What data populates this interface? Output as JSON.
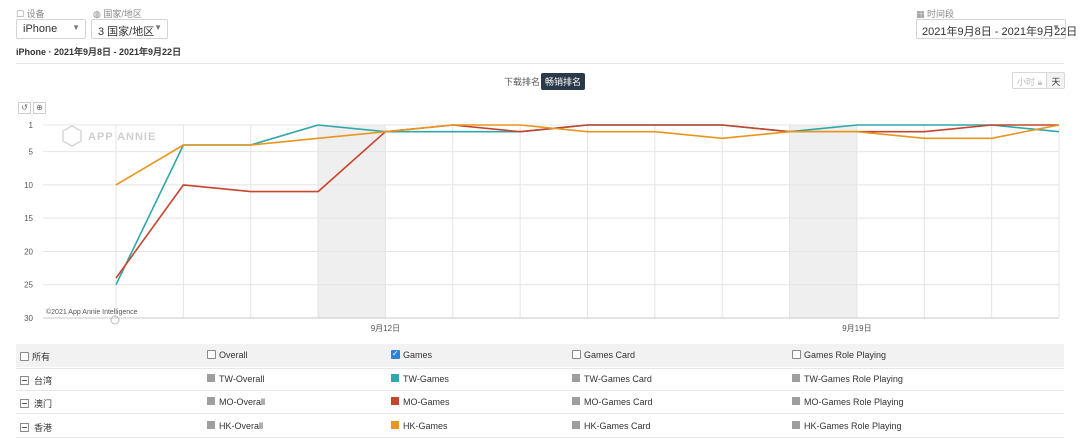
{
  "filters": {
    "device_label": "设备",
    "device_value": "iPhone",
    "country_label": "国家/地区",
    "country_value": "3 国家/地区",
    "time_label": "时间段",
    "time_value": "2021年9月8日 - 2021年9月22日"
  },
  "subtitle": "iPhone · 2021年9月8日 - 2021年9月22日",
  "rank_tabs": {
    "downloads": "下载排名",
    "grossing": "畅销排名"
  },
  "granularity": {
    "hour": "小时",
    "day": "天"
  },
  "watermark": "APP ANNIE",
  "copyright": "©2021 App Annie Intelligence",
  "colors": {
    "teal": "#2ea8a8",
    "red": "#c8442c",
    "orange": "#e8961e",
    "gray": "#9e9e9e",
    "accent": "#2b3a4a",
    "check": "#2b85d4"
  },
  "legend": {
    "headers": [
      "所有",
      "Overall",
      "Games",
      "Games Card",
      "Games Role Playing"
    ],
    "header_checked": [
      false,
      false,
      true,
      false,
      false
    ],
    "rows": [
      {
        "region": "台湾",
        "items": [
          "TW-Overall",
          "TW-Games",
          "TW-Games Card",
          "TW-Games Role Playing"
        ],
        "colors": [
          "#9e9e9e",
          "#2ea8a8",
          "#9e9e9e",
          "#9e9e9e"
        ]
      },
      {
        "region": "澳门",
        "items": [
          "MO-Overall",
          "MO-Games",
          "MO-Games Card",
          "MO-Games Role Playing"
        ],
        "colors": [
          "#9e9e9e",
          "#c8442c",
          "#9e9e9e",
          "#9e9e9e"
        ]
      },
      {
        "region": "香港",
        "items": [
          "HK-Overall",
          "HK-Games",
          "HK-Games Card",
          "HK-Games Role Playing"
        ],
        "colors": [
          "#9e9e9e",
          "#e8961e",
          "#9e9e9e",
          "#9e9e9e"
        ]
      }
    ]
  },
  "chart_data": {
    "type": "line",
    "x": [
      "2021-09-08",
      "2021-09-09",
      "2021-09-10",
      "2021-09-11",
      "2021-09-12",
      "2021-09-13",
      "2021-09-14",
      "2021-09-15",
      "2021-09-16",
      "2021-09-17",
      "2021-09-18",
      "2021-09-19",
      "2021-09-20",
      "2021-09-21",
      "2021-09-22"
    ],
    "x_tick_labels": [
      {
        "x": "2021-09-12",
        "label": "9月12日"
      },
      {
        "x": "2021-09-19",
        "label": "9月19日"
      }
    ],
    "y_ticks": [
      1,
      5,
      10,
      15,
      20,
      25,
      30
    ],
    "ylim": [
      30,
      1
    ],
    "y_inverted": true,
    "weekend_bands": [
      [
        "2021-09-11",
        "2021-09-12"
      ],
      [
        "2021-09-18",
        "2021-09-19"
      ]
    ],
    "series": [
      {
        "name": "TW-Games",
        "color": "#2ea8a8",
        "values": [
          25,
          4,
          4,
          1,
          2,
          2,
          2,
          1,
          1,
          1,
          2,
          1,
          1,
          1,
          2
        ]
      },
      {
        "name": "MO-Games",
        "color": "#c8442c",
        "values": [
          24,
          10,
          11,
          11,
          2,
          1,
          2,
          1,
          1,
          1,
          2,
          2,
          2,
          1,
          1
        ]
      },
      {
        "name": "HK-Games",
        "color": "#e8961e",
        "values": [
          10,
          4,
          4,
          3,
          2,
          1,
          1,
          2,
          2,
          3,
          2,
          2,
          3,
          3,
          1
        ]
      }
    ]
  }
}
